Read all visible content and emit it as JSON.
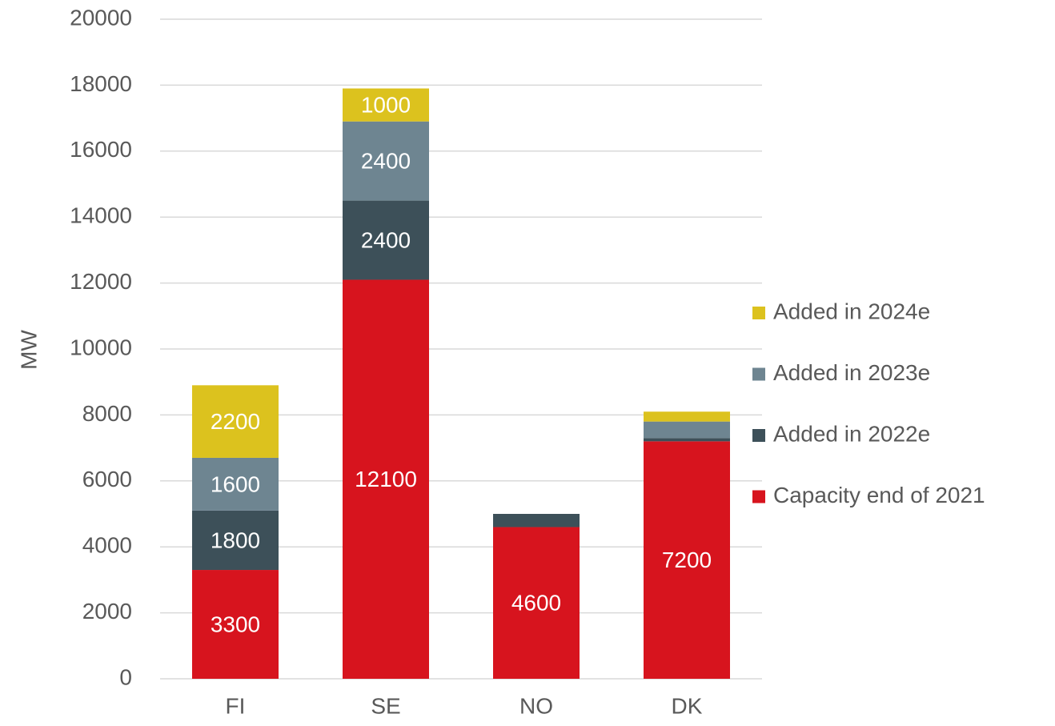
{
  "chart_data": {
    "type": "bar",
    "stacked": true,
    "y_label": "MW",
    "categories": [
      "FI",
      "SE",
      "NO",
      "DK"
    ],
    "series": [
      {
        "name": "Capacity end of 2021",
        "color": "#d7141e",
        "values": [
          3300,
          12100,
          4600,
          7200
        ]
      },
      {
        "name": "Added in 2022e",
        "color": "#3d5059",
        "values": [
          1800,
          2400,
          400,
          100
        ]
      },
      {
        "name": "Added in 2023e",
        "color": "#6e8591",
        "values": [
          1600,
          2400,
          0,
          500
        ]
      },
      {
        "name": "Added in 2024e",
        "color": "#dcc21e",
        "values": [
          2200,
          1000,
          0,
          300
        ]
      }
    ],
    "ylim": [
      0,
      20000
    ],
    "yticks": [
      0,
      2000,
      4000,
      6000,
      8000,
      10000,
      12000,
      14000,
      16000,
      18000,
      20000
    ],
    "grid": true,
    "legend": "right"
  }
}
